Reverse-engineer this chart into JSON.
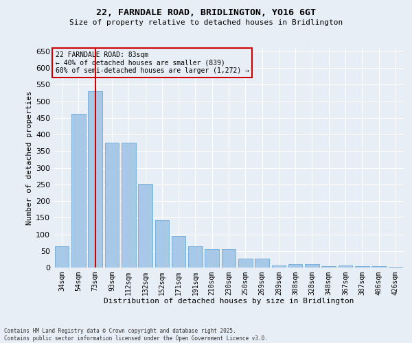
{
  "title_line1": "22, FARNDALE ROAD, BRIDLINGTON, YO16 6GT",
  "title_line2": "Size of property relative to detached houses in Bridlington",
  "xlabel": "Distribution of detached houses by size in Bridlington",
  "ylabel": "Number of detached properties",
  "categories": [
    "34sqm",
    "54sqm",
    "73sqm",
    "93sqm",
    "112sqm",
    "132sqm",
    "152sqm",
    "171sqm",
    "191sqm",
    "210sqm",
    "230sqm",
    "250sqm",
    "269sqm",
    "289sqm",
    "308sqm",
    "328sqm",
    "348sqm",
    "367sqm",
    "387sqm",
    "406sqm",
    "426sqm"
  ],
  "values": [
    63,
    463,
    530,
    375,
    375,
    252,
    143,
    95,
    63,
    55,
    55,
    27,
    27,
    7,
    10,
    10,
    5,
    6,
    5,
    5,
    3
  ],
  "bar_color": "#a8c8e8",
  "bar_edge_color": "#5a9fd4",
  "vline_x": 2,
  "vline_color": "#cc0000",
  "annotation_title": "22 FARNDALE ROAD: 83sqm",
  "annotation_line2": "← 40% of detached houses are smaller (839)",
  "annotation_line3": "60% of semi-detached houses are larger (1,272) →",
  "annotation_box_color": "#cc0000",
  "bg_color": "#e8eef5",
  "grid_color": "#ffffff",
  "ylim": [
    0,
    660
  ],
  "yticks": [
    0,
    50,
    100,
    150,
    200,
    250,
    300,
    350,
    400,
    450,
    500,
    550,
    600,
    650
  ],
  "footnote_line1": "Contains HM Land Registry data © Crown copyright and database right 2025.",
  "footnote_line2": "Contains public sector information licensed under the Open Government Licence v3.0."
}
